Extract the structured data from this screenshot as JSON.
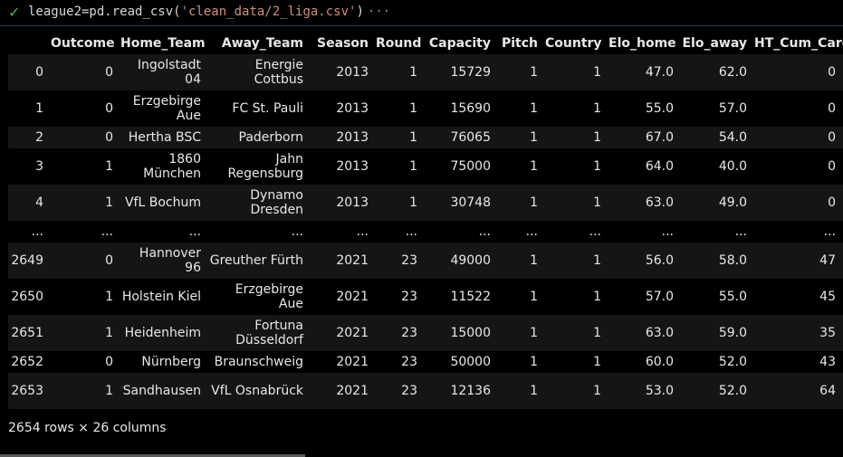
{
  "cell": {
    "status_icon": "check-icon",
    "code_prefix": "league2=pd.read_csv(",
    "code_string": "'clean_data/2_liga.csv'",
    "code_suffix": ")",
    "more_indicator": "···"
  },
  "table": {
    "columns": [
      "",
      "Outcome",
      "Home_Team",
      "Away_Team",
      "Season",
      "Round",
      "Capacity",
      "Pitch",
      "Country",
      "Elo_home",
      "Elo_away",
      "HT_Cum_Cards"
    ],
    "rows": [
      [
        "0",
        "0",
        "Ingolstadt 04",
        "Energie Cottbus",
        "2013",
        "1",
        "15729",
        "1",
        "1",
        "47.0",
        "62.0",
        "0"
      ],
      [
        "1",
        "0",
        "Erzgebirge Aue",
        "FC St. Pauli",
        "2013",
        "1",
        "15690",
        "1",
        "1",
        "55.0",
        "57.0",
        "0"
      ],
      [
        "2",
        "0",
        "Hertha BSC",
        "Paderborn",
        "2013",
        "1",
        "76065",
        "1",
        "1",
        "67.0",
        "54.0",
        "0"
      ],
      [
        "3",
        "1",
        "1860 München",
        "Jahn Regensburg",
        "2013",
        "1",
        "75000",
        "1",
        "1",
        "64.0",
        "40.0",
        "0"
      ],
      [
        "4",
        "1",
        "VfL Bochum",
        "Dynamo Dresden",
        "2013",
        "1",
        "30748",
        "1",
        "1",
        "63.0",
        "49.0",
        "0"
      ],
      [
        "...",
        "...",
        "...",
        "...",
        "...",
        "...",
        "...",
        "...",
        "...",
        "...",
        "...",
        "..."
      ],
      [
        "2649",
        "0",
        "Hannover 96",
        "Greuther Fürth",
        "2021",
        "23",
        "49000",
        "1",
        "1",
        "56.0",
        "58.0",
        "47"
      ],
      [
        "2650",
        "1",
        "Holstein Kiel",
        "Erzgebirge Aue",
        "2021",
        "23",
        "11522",
        "1",
        "1",
        "57.0",
        "55.0",
        "45"
      ],
      [
        "2651",
        "1",
        "Heidenheim",
        "Fortuna Düsseldorf",
        "2021",
        "23",
        "15000",
        "1",
        "1",
        "63.0",
        "59.0",
        "35"
      ],
      [
        "2652",
        "0",
        "Nürnberg",
        "Braunschweig",
        "2021",
        "23",
        "50000",
        "1",
        "1",
        "60.0",
        "52.0",
        "43"
      ],
      [
        "2653",
        "1",
        "Sandhausen",
        "VfL Osnabrück",
        "2021",
        "23",
        "12136",
        "1",
        "1",
        "53.0",
        "52.0",
        "64"
      ]
    ],
    "footer": "2654 rows × 26 columns"
  }
}
